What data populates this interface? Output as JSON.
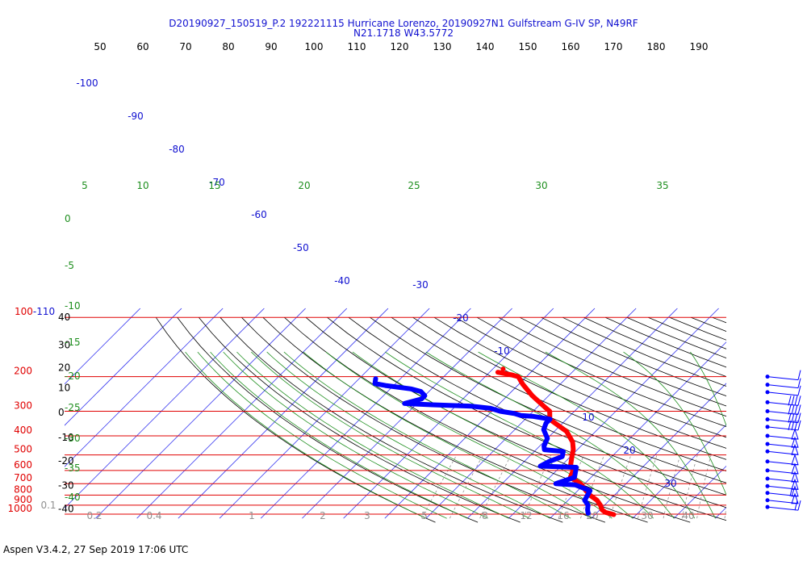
{
  "chart_data": {
    "type": "line",
    "title": "D20190927_150519_P.2 192221115 Hurricane Lorenzo, 20190927N1 Gulfstream G-IV SP, N49RF",
    "subtitle": "N21.1718 W43.5772",
    "pressure_labels": [
      {
        "p": 100,
        "text": "100-110"
      },
      {
        "p": 200,
        "text": "200"
      },
      {
        "p": 300,
        "text": "300"
      },
      {
        "p": 400,
        "text": "400"
      },
      {
        "p": 500,
        "text": "500"
      },
      {
        "p": 600,
        "text": "600"
      },
      {
        "p": 700,
        "text": "700"
      },
      {
        "p": 800,
        "text": "800"
      },
      {
        "p": 900,
        "text": "900"
      },
      {
        "p": 1000,
        "text": "1000"
      }
    ],
    "top_theta_labels": [
      "50",
      "60",
      "70",
      "80",
      "90",
      "100",
      "110",
      "120",
      "130",
      "140",
      "150",
      "160",
      "170",
      "180",
      "190"
    ],
    "left_black_labels": [
      {
        "text": "40",
        "p": 100
      },
      {
        "text": "30",
        "p": 138
      },
      {
        "text": "20",
        "p": 180
      },
      {
        "text": "10",
        "p": 228
      },
      {
        "text": "0",
        "p": 304
      },
      {
        "text": "-10",
        "p": 408
      },
      {
        "text": "-20",
        "p": 536
      },
      {
        "text": "-30",
        "p": 715
      },
      {
        "text": "-40",
        "p": 940
      }
    ],
    "isotherm_labels": [
      {
        "text": "-100",
        "x": 108,
        "y": 107
      },
      {
        "text": "-90",
        "x": 168,
        "y": 148
      },
      {
        "text": "-80",
        "x": 219,
        "y": 189
      },
      {
        "text": "-70",
        "x": 269,
        "y": 230
      },
      {
        "text": "-60",
        "x": 321,
        "y": 270
      },
      {
        "text": "-50",
        "x": 373,
        "y": 311
      },
      {
        "text": "-40",
        "x": 424,
        "y": 352
      },
      {
        "text": "-30",
        "x": 521,
        "y": 357
      },
      {
        "text": "-20",
        "x": 571,
        "y": 398
      },
      {
        "text": "-10",
        "x": 622,
        "y": 439
      },
      {
        "text": "10",
        "x": 729,
        "y": 521
      },
      {
        "text": "20",
        "x": 780,
        "y": 562
      },
      {
        "text": "30",
        "x": 831,
        "y": 603
      }
    ],
    "green_top_labels": [
      "5",
      "10",
      "15",
      "20",
      "25",
      "30",
      "35"
    ],
    "green_left_labels": [
      "0",
      "-5",
      "-10",
      "-15",
      "-20",
      "-25",
      "-30",
      "-35",
      "-40"
    ],
    "mixing_ratio_labels": [
      "0.1",
      "0.2",
      "0.4",
      "1",
      "2",
      "3",
      "5",
      "8",
      "12",
      "16",
      "20",
      "30",
      "40"
    ],
    "series": [
      {
        "name": "temperature",
        "color": "#ff0000",
        "points": [
          [
            -58,
            190
          ],
          [
            -54,
            196
          ],
          [
            -52,
            200
          ],
          [
            -49,
            219
          ],
          [
            -44,
            250
          ],
          [
            -38,
            287
          ],
          [
            -36,
            300
          ],
          [
            -34,
            330
          ],
          [
            -27,
            380
          ],
          [
            -23,
            430
          ],
          [
            -21,
            470
          ],
          [
            -20,
            500
          ],
          [
            -18,
            560
          ],
          [
            -16,
            600
          ],
          [
            -15,
            650
          ],
          [
            -11,
            700
          ],
          [
            -8,
            760
          ],
          [
            -6,
            800
          ],
          [
            -3,
            850
          ],
          [
            -1,
            900
          ],
          [
            0.5,
            950
          ],
          [
            2,
            980
          ],
          [
            4.5,
            1005
          ]
        ]
      },
      {
        "name": "dewpoint",
        "color": "#0000ff",
        "points": [
          [
            -86,
            205
          ],
          [
            -85,
            217
          ],
          [
            -82,
            222
          ],
          [
            -75,
            231
          ],
          [
            -72,
            238
          ],
          [
            -70,
            250
          ],
          [
            -70,
            260
          ],
          [
            -73,
            274
          ],
          [
            -66,
            278
          ],
          [
            -56,
            283
          ],
          [
            -51,
            290
          ],
          [
            -48,
            300
          ],
          [
            -44,
            308
          ],
          [
            -42,
            315
          ],
          [
            -39,
            318
          ],
          [
            -34,
            329
          ],
          [
            -34,
            345
          ],
          [
            -33,
            372
          ],
          [
            -30,
            412
          ],
          [
            -29,
            450
          ],
          [
            -28,
            470
          ],
          [
            -23,
            480
          ],
          [
            -22,
            510
          ],
          [
            -24,
            540
          ],
          [
            -25,
            570
          ],
          [
            -16,
            578
          ],
          [
            -14,
            650
          ],
          [
            -17,
            700
          ],
          [
            -12,
            710
          ],
          [
            -7,
            760
          ],
          [
            -6,
            850
          ],
          [
            -4,
            900
          ],
          [
            -3,
            950
          ],
          [
            -2,
            990
          ]
        ]
      }
    ],
    "dot_point": {
      "t": -57.5,
      "p": 183
    },
    "wind_barbs": [
      {
        "p": 200,
        "speed_kt": 10
      },
      {
        "p": 220,
        "speed_kt": 10
      },
      {
        "p": 240,
        "speed_kt": 10
      },
      {
        "p": 270,
        "speed_kt": 40
      },
      {
        "p": 300,
        "speed_kt": 40
      },
      {
        "p": 330,
        "speed_kt": 40
      },
      {
        "p": 360,
        "speed_kt": 40
      },
      {
        "p": 400,
        "speed_kt": 50
      },
      {
        "p": 440,
        "speed_kt": 50
      },
      {
        "p": 480,
        "speed_kt": 50
      },
      {
        "p": 540,
        "speed_kt": 50
      },
      {
        "p": 600,
        "speed_kt": 50
      },
      {
        "p": 660,
        "speed_kt": 50
      },
      {
        "p": 720,
        "speed_kt": 50
      },
      {
        "p": 780,
        "speed_kt": 60
      },
      {
        "p": 850,
        "speed_kt": 50
      },
      {
        "p": 920,
        "speed_kt": 20
      }
    ]
  },
  "footer": "Aspen V3.4.2, 27 Sep 2019  17:06 UTC"
}
